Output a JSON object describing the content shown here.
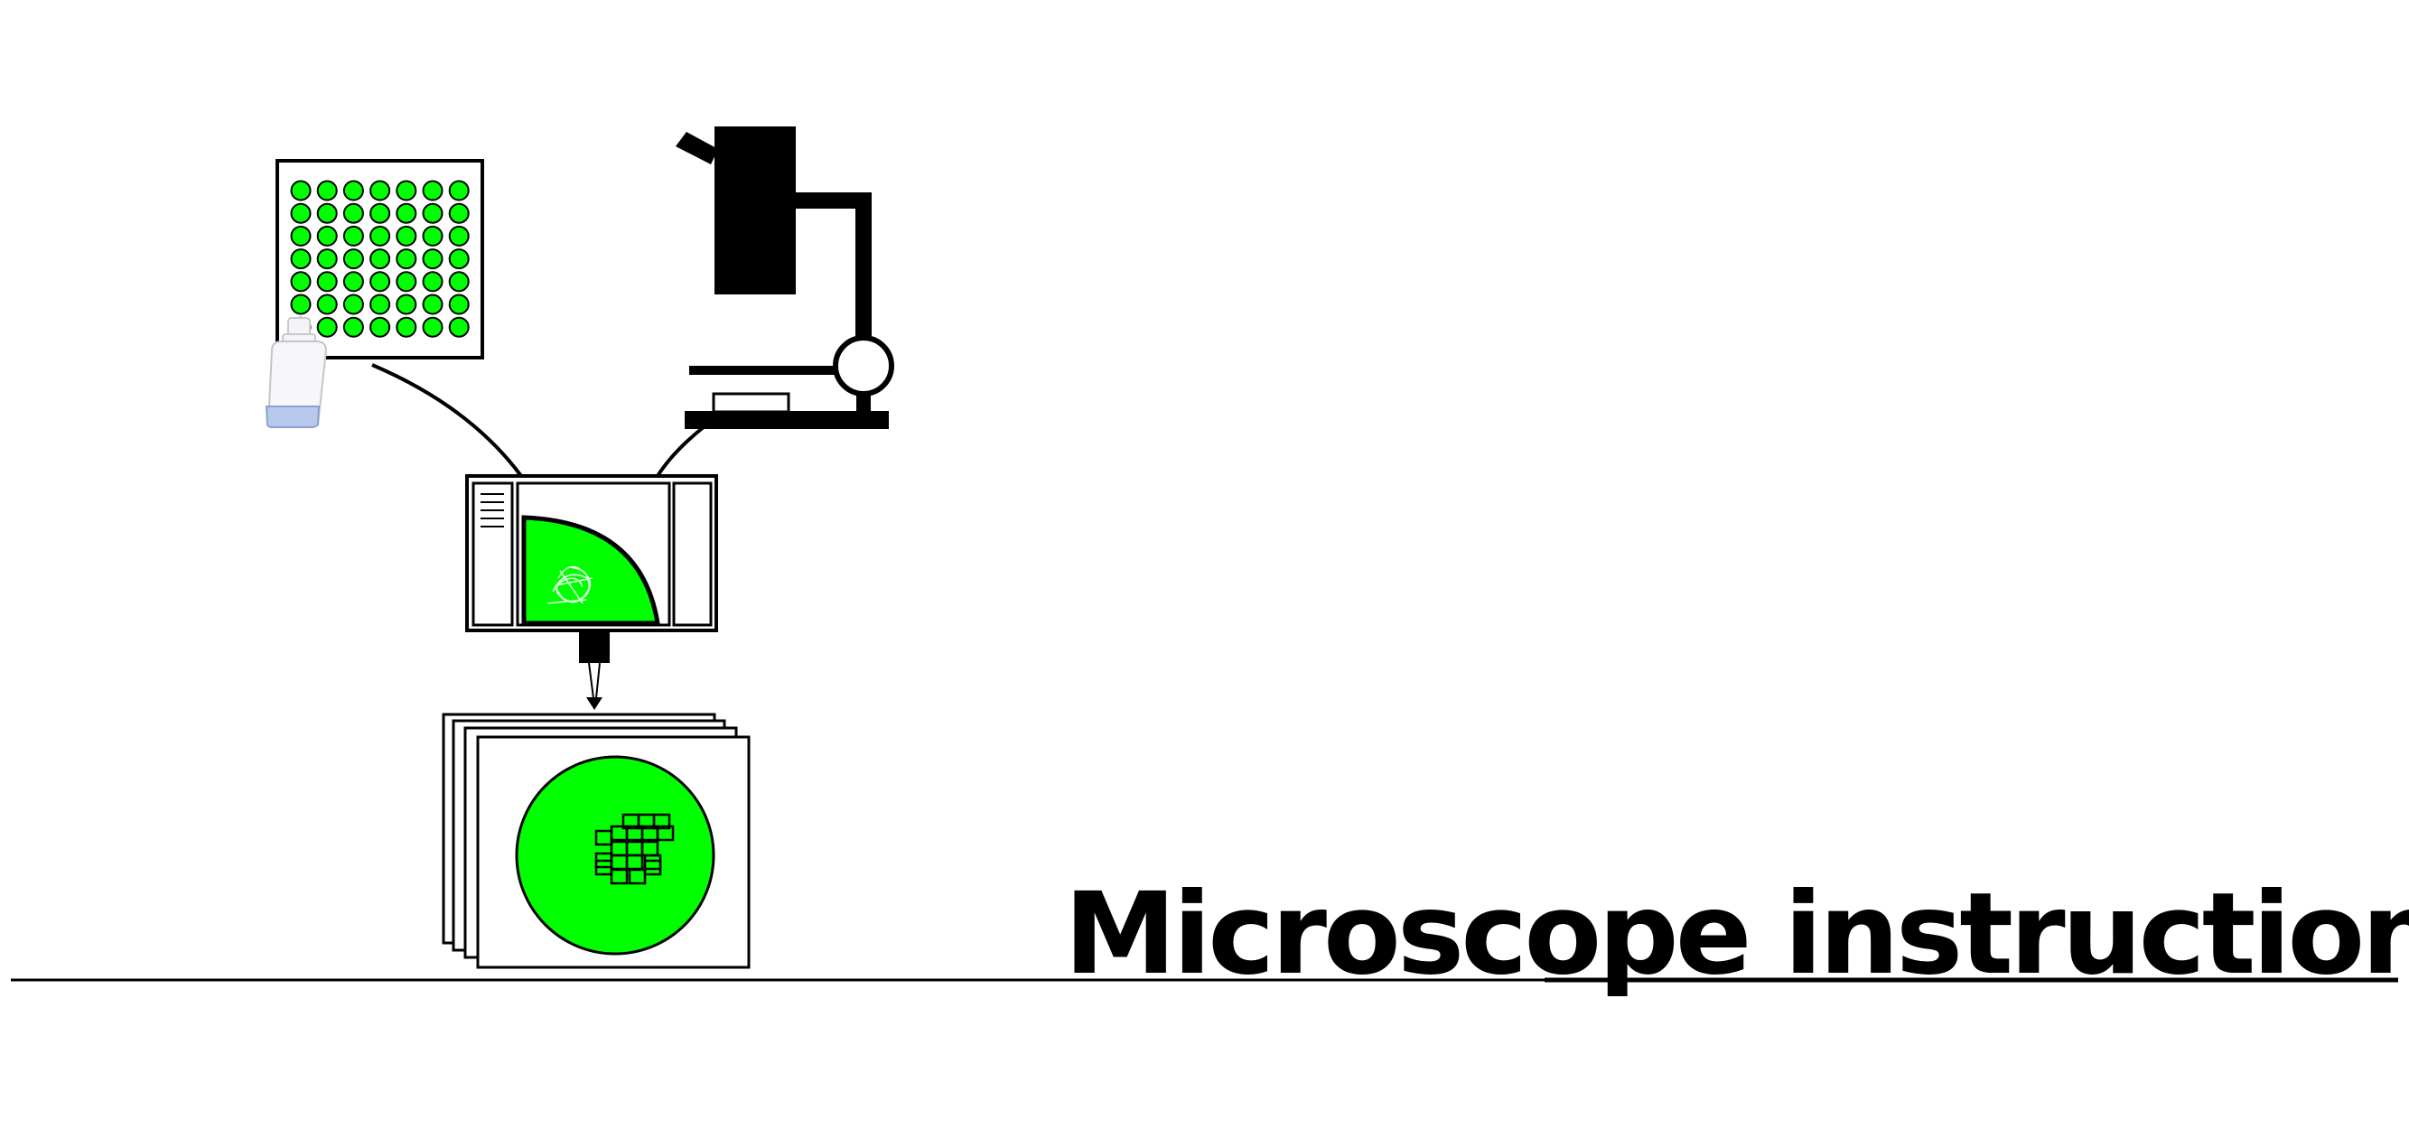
{
  "title": "Microscope instructions",
  "colors": {
    "well_fill": "#00ff00",
    "sample_fill": "#00ff00",
    "stroke": "#000000",
    "background": "#ffffff",
    "liquid": "#b8c8ec"
  },
  "icons": {
    "well_plate": "well-plate-icon",
    "bottle": "wash-bottle-icon",
    "microscope": "microscope-icon",
    "grid": "imaging-grid-icon",
    "images": "image-stack-icon",
    "software": "acquisition-software-icon"
  },
  "well_plate": {
    "rows": 7,
    "cols": 7
  }
}
